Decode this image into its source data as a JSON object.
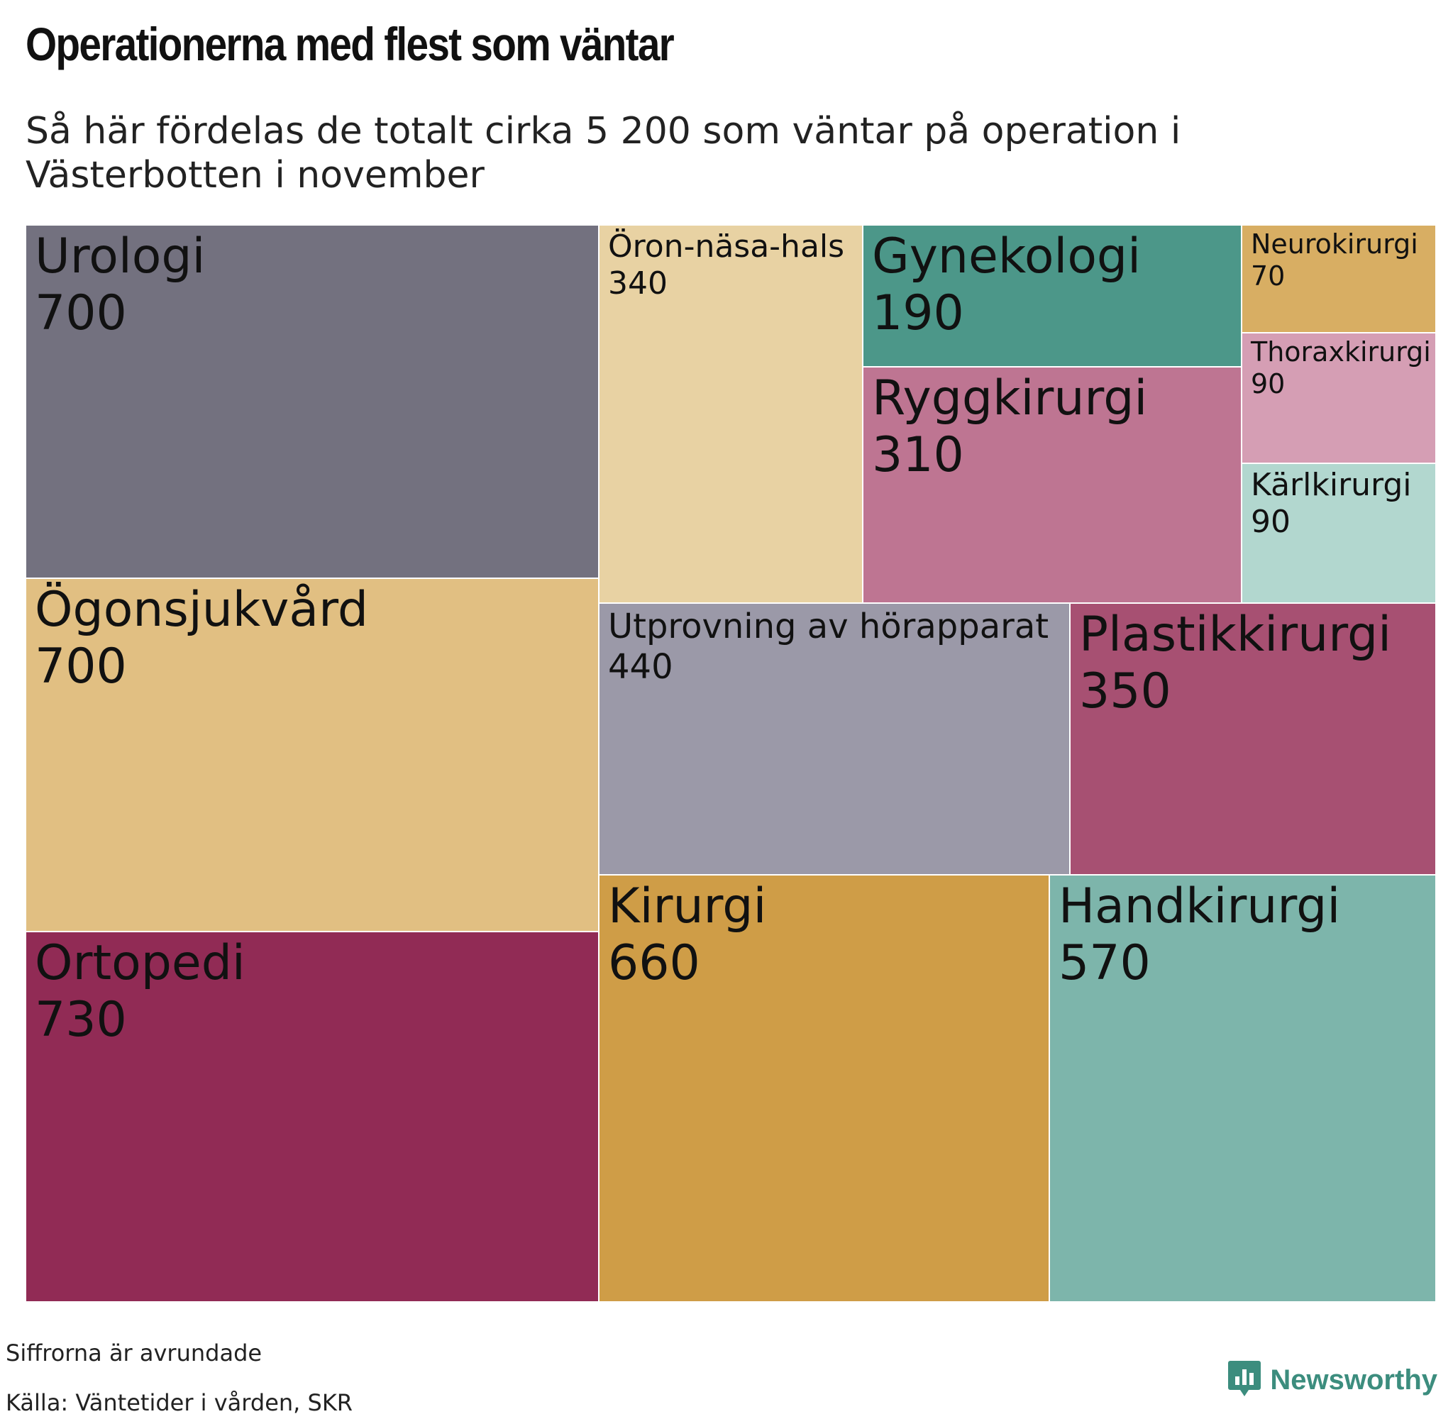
{
  "title": "Operationerna med flest som väntar",
  "subtitle": "Så här fördelas de totalt cirka 5 200 som väntar på operation i Västerbotten i november",
  "chart_data": {
    "type": "treemap",
    "items": [
      {
        "name": "Urologi",
        "value": 700,
        "color": "#73717f"
      },
      {
        "name": "Ögonsjukvård",
        "value": 700,
        "color": "#e1bf82"
      },
      {
        "name": "Ortopedi",
        "value": 730,
        "color": "#912b55"
      },
      {
        "name": "Öron-näsa-hals",
        "value": 340,
        "color": "#e8d2a3"
      },
      {
        "name": "Gynekologi",
        "value": 190,
        "color": "#4c9789"
      },
      {
        "name": "Ryggkirurgi",
        "value": 310,
        "color": "#be7592"
      },
      {
        "name": "Neurokirurgi",
        "value": 70,
        "color": "#d8ae63"
      },
      {
        "name": "Thoraxkirurgi",
        "value": 90,
        "color": "#d59eb4"
      },
      {
        "name": "Kärlkirurgi",
        "value": 90,
        "color": "#b2d7cf"
      },
      {
        "name": "Utprovning av hörapparat",
        "value": 440,
        "color": "#9b99a8"
      },
      {
        "name": "Plastikkirurgi",
        "value": 350,
        "color": "#a75072"
      },
      {
        "name": "Kirurgi",
        "value": 660,
        "color": "#cf9d47"
      },
      {
        "name": "Handkirurgi",
        "value": 570,
        "color": "#7db5ab"
      }
    ]
  },
  "notes": {
    "rounding": "Siffrorna är avrundade",
    "source": "Källa: Väntetider i vården, SKR"
  },
  "brand": {
    "name": "Newsworthy",
    "icon": "speech-bubble-bar-chart-icon",
    "color": "#3c8d7e"
  }
}
